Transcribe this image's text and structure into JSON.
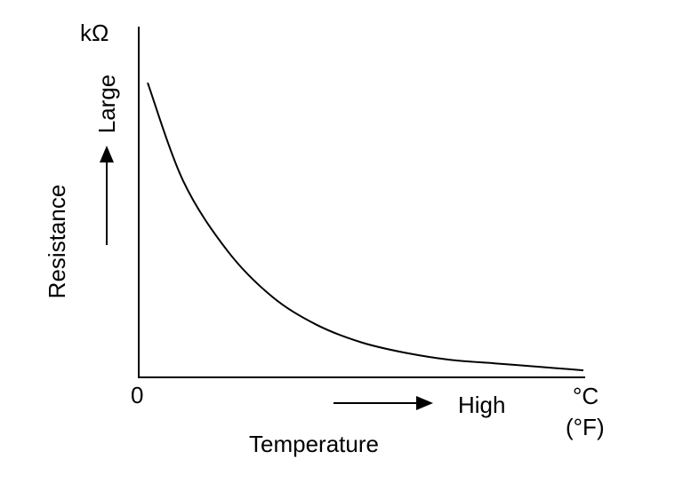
{
  "chart_data": {
    "type": "line",
    "title": "",
    "y_unit": "kΩ",
    "ylabel": "Resistance",
    "y_direction_label": "Large",
    "xlabel": "Temperature",
    "x_direction_label": "High",
    "x_origin_label": "0",
    "x_unit_primary": "°C",
    "x_unit_secondary": "(°F)",
    "xlim": [
      0,
      100
    ],
    "ylim": [
      0,
      100
    ],
    "grid": false,
    "legend": "none",
    "series": [
      {
        "color": "#000000",
        "x": [
          2,
          10,
          20,
          30,
          40,
          50,
          60,
          70,
          80,
          90,
          100
        ],
        "y": [
          84,
          56,
          36,
          23,
          15,
          10,
          7,
          5,
          4,
          3,
          2
        ]
      }
    ]
  }
}
